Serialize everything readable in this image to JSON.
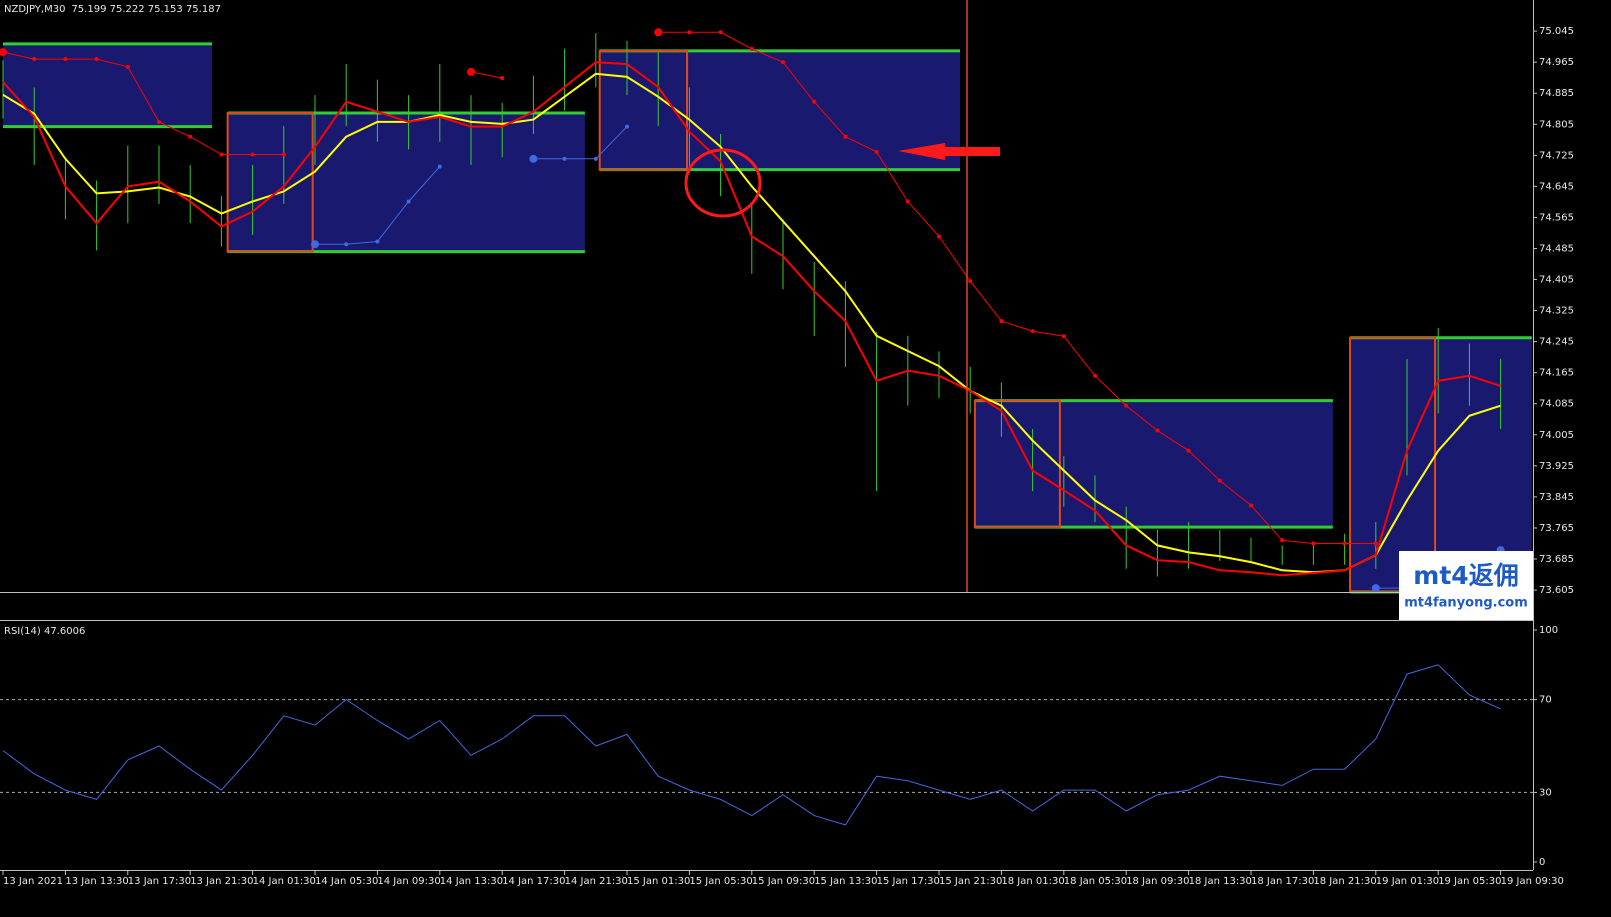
{
  "chart_data": [
    {
      "type": "ohlc",
      "title": "NZDJPY,M30",
      "subtitle": "75.199 75.222 75.153 75.187",
      "x": [
        0,
        4,
        8,
        12,
        16,
        20,
        24,
        28,
        32,
        36,
        40,
        44,
        48,
        52,
        56,
        60,
        64,
        68,
        72,
        76,
        80,
        84,
        88,
        92,
        96,
        100,
        104,
        108,
        112,
        116,
        120,
        124,
        128,
        132,
        136,
        140,
        144,
        148,
        152,
        156,
        160,
        164,
        168,
        172,
        176,
        180,
        184,
        188,
        192
      ],
      "high": [
        74.97,
        74.9,
        74.72,
        74.66,
        74.75,
        74.75,
        74.7,
        74.62,
        74.7,
        74.8,
        74.88,
        74.96,
        74.92,
        74.88,
        74.96,
        74.88,
        74.86,
        74.93,
        75.0,
        75.04,
        75.02,
        74.99,
        74.9,
        74.78,
        74.6,
        74.56,
        74.45,
        74.4,
        74.27,
        74.26,
        74.22,
        74.18,
        74.14,
        74.02,
        73.95,
        73.9,
        73.82,
        73.76,
        73.78,
        73.76,
        73.74,
        73.72,
        73.73,
        73.75,
        73.78,
        74.2,
        74.28,
        74.24,
        74.2
      ],
      "low": [
        74.82,
        74.7,
        74.56,
        74.48,
        74.55,
        74.6,
        74.55,
        74.49,
        74.52,
        74.6,
        74.7,
        74.8,
        74.76,
        74.74,
        74.76,
        74.7,
        74.72,
        74.78,
        74.84,
        74.9,
        74.88,
        74.8,
        74.68,
        74.62,
        74.42,
        74.38,
        74.26,
        74.18,
        73.86,
        74.08,
        74.1,
        74.06,
        74.0,
        73.86,
        73.82,
        73.78,
        73.66,
        73.64,
        73.66,
        73.68,
        73.68,
        73.67,
        73.67,
        73.67,
        73.66,
        73.9,
        74.06,
        74.08,
        74.02
      ],
      "bar_color": "#32cd32",
      "lines": [
        {
          "color": "#ffff00",
          "values": [
            74.881,
            74.832,
            74.716,
            74.627,
            74.632,
            74.642,
            74.619,
            74.575,
            74.606,
            74.632,
            74.683,
            74.773,
            74.811,
            74.811,
            74.829,
            74.811,
            74.806,
            74.817,
            74.876,
            74.935,
            74.927,
            74.876,
            74.817,
            74.747,
            74.645,
            74.555,
            74.465,
            74.375,
            74.26,
            74.221,
            74.182,
            74.118,
            74.08,
            73.99,
            73.913,
            73.836,
            73.785,
            73.72,
            73.702,
            73.692,
            73.677,
            73.656,
            73.651,
            73.656,
            73.695,
            73.836,
            73.964,
            74.054,
            74.08
          ]
        },
        {
          "color": "#ff0000",
          "values": [
            74.914,
            74.824,
            74.645,
            74.55,
            74.645,
            74.657,
            74.606,
            74.542,
            74.58,
            74.645,
            74.747,
            74.863,
            74.837,
            74.811,
            74.824,
            74.799,
            74.799,
            74.837,
            74.901,
            74.965,
            74.96,
            74.901,
            74.786,
            74.709,
            74.516,
            74.465,
            74.375,
            74.298,
            74.144,
            74.17,
            74.157,
            74.118,
            74.067,
            73.913,
            73.862,
            73.81,
            73.72,
            73.682,
            73.677,
            73.656,
            73.651,
            73.643,
            73.649,
            73.656,
            73.695,
            73.964,
            74.144,
            74.157,
            74.131
          ]
        }
      ],
      "dots": [
        {
          "color": "#ff0000",
          "values": [
            74.991,
            74.973,
            74.973,
            74.973,
            74.953,
            74.811,
            74.773,
            74.727,
            74.727,
            74.727,
            null,
            null,
            null,
            null,
            null,
            74.94,
            74.924,
            null,
            null,
            null,
            null,
            75.042,
            75.042,
            75.042,
            74.999,
            74.965,
            74.863,
            74.773,
            74.734,
            74.606,
            74.516,
            74.401,
            74.298,
            74.272,
            74.259,
            74.157,
            74.08,
            74.016,
            73.964,
            73.887,
            73.823,
            73.733,
            73.725,
            73.725,
            73.725,
            null,
            null,
            null,
            null
          ]
        },
        {
          "color": "#4169e1",
          "values": [
            null,
            null,
            null,
            null,
            null,
            null,
            null,
            null,
            null,
            null,
            74.496,
            74.496,
            74.503,
            74.606,
            74.696,
            null,
            null,
            74.716,
            74.716,
            74.716,
            74.799,
            null,
            null,
            null,
            null,
            null,
            null,
            null,
            null,
            null,
            null,
            null,
            null,
            null,
            null,
            null,
            null,
            null,
            null,
            null,
            null,
            null,
            null,
            null,
            73.61,
            73.61,
            null,
            null,
            73.708
          ]
        }
      ],
      "zone_color": "#191970",
      "zone_edge_color": "#32cd32",
      "box_color": "#e0481c",
      "zones": [
        {
          "x": [
            0,
            26.8
          ],
          "y": [
            75.012,
            74.799
          ]
        },
        {
          "x": [
            28.8,
            74.6
          ],
          "y": [
            74.834,
            74.477
          ],
          "box_x": [
            28.8,
            39.7
          ]
        },
        {
          "x": [
            76.5,
            122.7
          ],
          "y": [
            74.994,
            74.688
          ],
          "box_x": [
            76.5,
            87.7
          ]
        },
        {
          "x": [
            124.6,
            170.5
          ],
          "y": [
            74.093,
            73.767
          ],
          "box_x": [
            124.6,
            135.5
          ]
        },
        {
          "x": [
            172.7,
            196
          ],
          "y": [
            74.255,
            73.6
          ],
          "box_x": [
            172.7,
            183.6
          ]
        }
      ],
      "xlim": [
        0,
        196
      ],
      "ylim": [
        73.6,
        75.12
      ],
      "yticks": [
        75.045,
        74.965,
        74.885,
        74.805,
        74.725,
        74.645,
        74.565,
        74.485,
        74.405,
        74.325,
        74.245,
        74.165,
        74.085,
        74.005,
        73.925,
        73.845,
        73.765,
        73.685,
        73.605
      ]
    },
    {
      "type": "line",
      "title": "RSI(14) 47.6006",
      "x": [
        0,
        4,
        8,
        12,
        16,
        20,
        24,
        28,
        32,
        36,
        40,
        44,
        48,
        52,
        56,
        60,
        64,
        68,
        72,
        76,
        80,
        84,
        88,
        92,
        96,
        100,
        104,
        108,
        112,
        116,
        120,
        124,
        128,
        132,
        136,
        140,
        144,
        148,
        152,
        156,
        160,
        164,
        168,
        172,
        176,
        180,
        184,
        188,
        192
      ],
      "series": [
        {
          "color": "#4169e1",
          "values": [
            48,
            38,
            31,
            27,
            44,
            50,
            40,
            31,
            46,
            63,
            59,
            70,
            61,
            53,
            61,
            46,
            53,
            63,
            63,
            50,
            55,
            37,
            31,
            27,
            20,
            29,
            20,
            16,
            37,
            35,
            31,
            27,
            31,
            22,
            31,
            31,
            22,
            29,
            31,
            37,
            35,
            33,
            40,
            40,
            53,
            81,
            85,
            72,
            66
          ]
        }
      ],
      "levels": [
        70,
        30
      ],
      "xlim": [
        0,
        196
      ],
      "ylim": [
        0,
        100
      ],
      "yticks": [
        100,
        70,
        30,
        0
      ],
      "xticks": [
        {
          "value": 0,
          "label": "13 Jan 2021"
        },
        {
          "value": 8,
          "label": "13 Jan 13:30"
        },
        {
          "value": 16,
          "label": "13 Jan 17:30"
        },
        {
          "value": 24,
          "label": "13 Jan 21:30"
        },
        {
          "value": 32,
          "label": "14 Jan 01:30"
        },
        {
          "value": 40,
          "label": "14 Jan 05:30"
        },
        {
          "value": 48,
          "label": "14 Jan 09:30"
        },
        {
          "value": 56,
          "label": "14 Jan 13:30"
        },
        {
          "value": 64,
          "label": "14 Jan 17:30"
        },
        {
          "value": 72,
          "label": "14 Jan 21:30"
        },
        {
          "value": 80,
          "label": "15 Jan 01:30"
        },
        {
          "value": 88,
          "label": "15 Jan 05:30"
        },
        {
          "value": 96,
          "label": "15 Jan 09:30"
        },
        {
          "value": 104,
          "label": "15 Jan 13:30"
        },
        {
          "value": 112,
          "label": "15 Jan 17:30"
        },
        {
          "value": 120,
          "label": "15 Jan 21:30"
        },
        {
          "value": 128,
          "label": "18 Jan 01:30"
        },
        {
          "value": 136,
          "label": "18 Jan 05:30"
        },
        {
          "value": 144,
          "label": "18 Jan 09:30"
        },
        {
          "value": 152,
          "label": "18 Jan 13:30"
        },
        {
          "value": 160,
          "label": "18 Jan 17:30"
        },
        {
          "value": 168,
          "label": "18 Jan 21:30"
        },
        {
          "value": 176,
          "label": "19 Jan 01:30"
        },
        {
          "value": 184,
          "label": "19 Jan 05:30"
        },
        {
          "value": 192,
          "label": "19 Jan 09:30"
        }
      ]
    }
  ],
  "watermark": {
    "title": "mt4返佣",
    "url": "mt4fanyong.com"
  }
}
